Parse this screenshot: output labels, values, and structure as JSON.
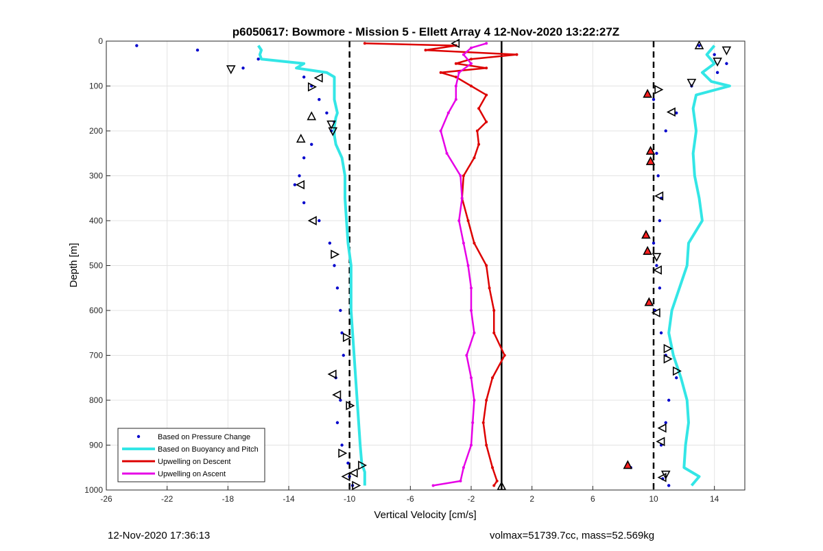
{
  "chart_data": {
    "type": "scatter",
    "title": "p6050617: Bowmore - Mission 5 - Ellett Array 4 12-Nov-2020 13:22:27Z",
    "xlabel": "Vertical Velocity [cm/s]",
    "ylabel": "Depth [m]",
    "xlim": [
      -26,
      16
    ],
    "ylim": [
      1000,
      0
    ],
    "y_reversed": true,
    "grid": true,
    "legend_position": "bottom-left",
    "x_ticks": [
      -26,
      -22,
      -18,
      -14,
      -10,
      -6,
      -2,
      2,
      6,
      10,
      14
    ],
    "y_ticks": [
      0,
      100,
      200,
      300,
      400,
      500,
      600,
      700,
      800,
      900,
      1000
    ],
    "reference_lines": [
      {
        "x": -10,
        "style": "dashed",
        "color": "#000000"
      },
      {
        "x": 0,
        "style": "solid",
        "color": "#000000"
      },
      {
        "x": 10,
        "style": "dashed",
        "color": "#000000"
      }
    ],
    "series": [
      {
        "name": "Based on Pressure Change",
        "style": "dots",
        "color": "#0000cc",
        "branches": [
          {
            "depth": [
              10,
              20,
              40,
              60,
              80,
              100,
              130,
              160,
              180,
              200,
              230,
              260,
              300,
              320,
              360,
              400,
              450,
              500,
              550,
              600,
              650,
              700,
              750,
              800,
              850,
              900,
              940,
              970,
              990
            ],
            "x": [
              -24,
              -20,
              -16,
              -17,
              -13,
              -12.5,
              -12,
              -11.5,
              -11,
              -11.2,
              -12.5,
              -13,
              -13.3,
              -13.6,
              -13,
              -12,
              -11.3,
              -11,
              -10.8,
              -10.6,
              -10.5,
              -10.4,
              -10.9,
              -10.6,
              -10.8,
              -10.5,
              -10.1,
              -10,
              -9.8
            ]
          },
          {
            "depth": [
              10,
              30,
              50,
              70,
              100,
              130,
              160,
              200,
              250,
              300,
              350,
              400,
              450,
              500,
              550,
              600,
              650,
              700,
              750,
              800,
              850,
              900,
              950,
              975,
              990
            ],
            "x": [
              13,
              14,
              14.8,
              14.2,
              12.5,
              10,
              11.5,
              10.8,
              10.2,
              10.3,
              10.5,
              10.4,
              10,
              10.2,
              10.4,
              10.1,
              10.5,
              10.8,
              11.5,
              11,
              10.8,
              10.5,
              8.5,
              10.6,
              11
            ]
          }
        ]
      },
      {
        "name": "Based on Buoyancy and Pitch",
        "style": "line",
        "color": "#33e6e6",
        "branches": [
          {
            "depth": [
              10,
              20,
              30,
              40,
              50,
              60,
              70,
              80,
              100,
              130,
              160,
              170,
              190,
              210,
              230,
              260,
              300,
              350,
              400,
              450,
              500,
              550,
              600,
              650,
              700,
              750,
              800,
              850,
              900,
              940,
              960,
              980,
              990
            ],
            "x": [
              -16,
              -15.8,
              -15.9,
              -15.8,
              -13,
              -13.5,
              -11.5,
              -11,
              -11,
              -11,
              -10.8,
              -10.9,
              -11,
              -11,
              -10.9,
              -10.5,
              -10.3,
              -10.3,
              -10.2,
              -10.1,
              -9.9,
              -9.9,
              -9.9,
              -9.8,
              -9.7,
              -9.6,
              -9.5,
              -9.4,
              -9.3,
              -9.2,
              -9,
              -9,
              -9
            ]
          },
          {
            "depth": [
              10,
              30,
              50,
              70,
              90,
              100,
              120,
              150,
              200,
              250,
              300,
              350,
              400,
              450,
              500,
              550,
              600,
              650,
              700,
              750,
              800,
              850,
              900,
              950,
              970,
              990
            ],
            "x": [
              14,
              13.5,
              14,
              13.2,
              13.8,
              15,
              12.8,
              12.6,
              12.8,
              12.6,
              12.7,
              13,
              13.2,
              12.3,
              12.2,
              11.7,
              11.2,
              11,
              11.3,
              11.8,
              12.2,
              12.3,
              12.1,
              12,
              13,
              12.5
            ]
          }
        ]
      },
      {
        "name": "Upwelling on Descent",
        "style": "line-with-markers",
        "color": "#dd0000",
        "depth": [
          5,
          10,
          20,
          30,
          40,
          50,
          60,
          70,
          80,
          100,
          120,
          150,
          180,
          200,
          230,
          260,
          300,
          350,
          400,
          450,
          500,
          550,
          600,
          650,
          700,
          750,
          800,
          850,
          900,
          950,
          980,
          990
        ],
        "x": [
          -9,
          -3,
          -5,
          1,
          -2,
          -3,
          -1,
          -4,
          -3,
          -2,
          -1,
          -1.5,
          -1,
          -1.6,
          -1.5,
          -1.8,
          -2.5,
          -2.6,
          -2.2,
          -1.8,
          -1,
          -0.8,
          -0.5,
          -0.5,
          0.2,
          -0.6,
          -1,
          -1.2,
          -1,
          -0.6,
          -0.3,
          -0.5
        ]
      },
      {
        "name": "Upwelling on Ascent",
        "style": "line-with-markers",
        "color": "#e600e6",
        "depth": [
          5,
          15,
          30,
          50,
          70,
          100,
          130,
          160,
          200,
          250,
          300,
          350,
          400,
          450,
          500,
          550,
          600,
          650,
          700,
          750,
          800,
          850,
          900,
          950,
          980,
          990
        ],
        "x": [
          -1,
          -2,
          -2.5,
          -2,
          -2.8,
          -3,
          -3,
          -3.5,
          -4,
          -3.6,
          -2.7,
          -2.6,
          -2.8,
          -2.5,
          -2.2,
          -2,
          -2,
          -1.8,
          -2.3,
          -2,
          -1.8,
          -1.9,
          -2,
          -2.5,
          -2.7,
          -4.5
        ]
      }
    ],
    "triangle_markers": [
      {
        "x": -3,
        "depth": 5,
        "dir": "left",
        "fill": "none"
      },
      {
        "x": 13,
        "depth": 10,
        "dir": "up",
        "fill": "none"
      },
      {
        "x": 14.8,
        "depth": 20,
        "dir": "down",
        "fill": "none"
      },
      {
        "x": 14.2,
        "depth": 45,
        "dir": "down",
        "fill": "none"
      },
      {
        "x": -17.8,
        "depth": 62,
        "dir": "down",
        "fill": "none"
      },
      {
        "x": -12,
        "depth": 82,
        "dir": "left",
        "fill": "none"
      },
      {
        "x": 12.5,
        "depth": 92,
        "dir": "down",
        "fill": "none"
      },
      {
        "x": -12.5,
        "depth": 102,
        "dir": "right",
        "fill": "none"
      },
      {
        "x": 10.3,
        "depth": 108,
        "dir": "right",
        "fill": "none"
      },
      {
        "x": 9.6,
        "depth": 118,
        "dir": "up",
        "fill": "red"
      },
      {
        "x": 11.2,
        "depth": 158,
        "dir": "left",
        "fill": "none"
      },
      {
        "x": -12.5,
        "depth": 168,
        "dir": "up",
        "fill": "none"
      },
      {
        "x": -11.2,
        "depth": 185,
        "dir": "down",
        "fill": "none"
      },
      {
        "x": -11.1,
        "depth": 200,
        "dir": "down",
        "fill": "none"
      },
      {
        "x": -13.2,
        "depth": 218,
        "dir": "up",
        "fill": "none"
      },
      {
        "x": 9.8,
        "depth": 245,
        "dir": "up",
        "fill": "red"
      },
      {
        "x": 9.8,
        "depth": 268,
        "dir": "up",
        "fill": "red"
      },
      {
        "x": -13.2,
        "depth": 320,
        "dir": "left",
        "fill": "none"
      },
      {
        "x": 10.4,
        "depth": 345,
        "dir": "left",
        "fill": "none"
      },
      {
        "x": -12.4,
        "depth": 400,
        "dir": "left",
        "fill": "none"
      },
      {
        "x": 9.5,
        "depth": 432,
        "dir": "up",
        "fill": "red"
      },
      {
        "x": 9.6,
        "depth": 468,
        "dir": "up",
        "fill": "red"
      },
      {
        "x": -11,
        "depth": 475,
        "dir": "right",
        "fill": "none"
      },
      {
        "x": 10.2,
        "depth": 480,
        "dir": "down",
        "fill": "none"
      },
      {
        "x": 10.3,
        "depth": 510,
        "dir": "left",
        "fill": "none"
      },
      {
        "x": 9.7,
        "depth": 582,
        "dir": "up",
        "fill": "red"
      },
      {
        "x": 10.2,
        "depth": 605,
        "dir": "left",
        "fill": "none"
      },
      {
        "x": -10.2,
        "depth": 660,
        "dir": "right",
        "fill": "none"
      },
      {
        "x": 10.9,
        "depth": 685,
        "dir": "right",
        "fill": "none"
      },
      {
        "x": 10.9,
        "depth": 708,
        "dir": "right",
        "fill": "none"
      },
      {
        "x": 11.5,
        "depth": 735,
        "dir": "right",
        "fill": "none"
      },
      {
        "x": -11.1,
        "depth": 742,
        "dir": "left",
        "fill": "none"
      },
      {
        "x": -10.8,
        "depth": 788,
        "dir": "left",
        "fill": "none"
      },
      {
        "x": -10,
        "depth": 812,
        "dir": "right",
        "fill": "none"
      },
      {
        "x": 10.6,
        "depth": 862,
        "dir": "left",
        "fill": "none"
      },
      {
        "x": 10.5,
        "depth": 892,
        "dir": "left",
        "fill": "none"
      },
      {
        "x": -10.5,
        "depth": 918,
        "dir": "right",
        "fill": "none"
      },
      {
        "x": -9.2,
        "depth": 945,
        "dir": "right",
        "fill": "none"
      },
      {
        "x": 8.3,
        "depth": 945,
        "dir": "up",
        "fill": "red"
      },
      {
        "x": -9.7,
        "depth": 962,
        "dir": "left",
        "fill": "none"
      },
      {
        "x": 10.8,
        "depth": 965,
        "dir": "down",
        "fill": "none"
      },
      {
        "x": -10.2,
        "depth": 970,
        "dir": "left",
        "fill": "none"
      },
      {
        "x": 10.6,
        "depth": 972,
        "dir": "left",
        "fill": "none"
      },
      {
        "x": -9.6,
        "depth": 990,
        "dir": "right",
        "fill": "none"
      },
      {
        "x": 0,
        "depth": 992,
        "dir": "up",
        "fill": "none"
      }
    ]
  },
  "footer": {
    "timestamp": "12-Nov-2020 17:36:13",
    "info": "volmax=51739.7cc, mass=52.569kg"
  }
}
